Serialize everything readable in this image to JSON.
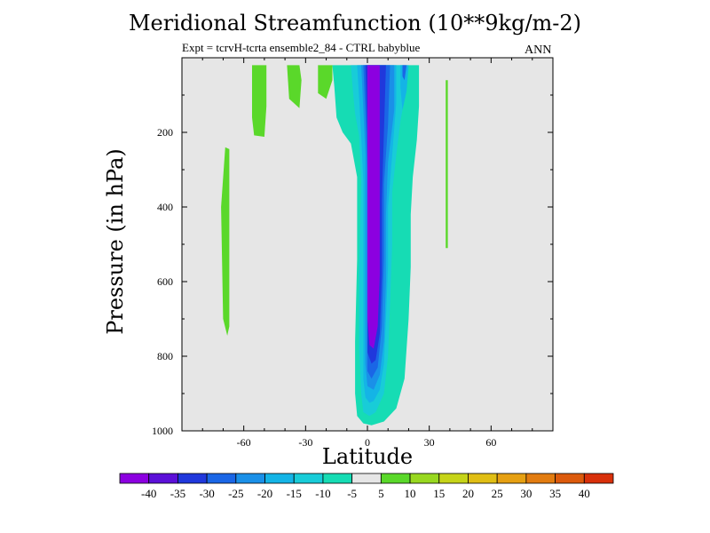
{
  "chart_data": {
    "type": "heatmap",
    "title": "Meridional Streamfunction (10**9kg/m-2)",
    "subtitle": "Expt = tcrvH-tcrta ensemble2_84 - CTRL babyblue",
    "season": "ANN",
    "xlabel": "Latitude",
    "ylabel": "Pressure (in hPa)",
    "xlim": [
      -90,
      90
    ],
    "ylim": [
      1000,
      0
    ],
    "x_ticks": [
      -60,
      -30,
      0,
      30,
      60
    ],
    "y_ticks": [
      200,
      400,
      600,
      800,
      1000
    ],
    "background_color": "#e6e6e6",
    "colorbar": {
      "labels": [
        "-40",
        "-35",
        "-30",
        "-25",
        "-20",
        "-15",
        "-10",
        "-5",
        "5",
        "10",
        "15",
        "20",
        "25",
        "30",
        "35",
        "40"
      ],
      "colors": [
        "#8c00e0",
        "#5c10d8",
        "#2038dc",
        "#1a66e6",
        "#1a90e8",
        "#14b4e6",
        "#18ccd8",
        "#16dcb4",
        "#e6e6e6",
        "#5ad82a",
        "#98d820",
        "#c6d418",
        "#e0be14",
        "#e6a012",
        "#e27c10",
        "#dc5a0c",
        "#d8300a"
      ]
    },
    "regions": [
      {
        "level": "10",
        "color": "#5ad82a",
        "label": "positive cell NH stratosphere",
        "points": [
          [
            -56,
            20
          ],
          [
            -49,
            20
          ],
          [
            -49,
            130
          ],
          [
            -50,
            212
          ],
          [
            -55,
            208
          ],
          [
            -56,
            160
          ]
        ]
      },
      {
        "level": "10",
        "color": "#5ad82a",
        "label": "positive cell SH tropics-upper",
        "points": [
          [
            -39,
            20
          ],
          [
            -33,
            20
          ],
          [
            -32,
            60
          ],
          [
            -33,
            135
          ],
          [
            -38,
            110
          ]
        ]
      },
      {
        "level": "10",
        "color": "#5ad82a",
        "label": "positive cell subtropics",
        "points": [
          [
            -24,
            20
          ],
          [
            -17,
            20
          ],
          [
            -17,
            60
          ],
          [
            -20,
            110
          ],
          [
            -24,
            95
          ]
        ]
      },
      {
        "level": "10",
        "color": "#5ad82a",
        "label": "positive cell south polar",
        "points": [
          [
            -69,
            240
          ],
          [
            -67,
            245
          ],
          [
            -67,
            720
          ],
          [
            -68,
            745
          ],
          [
            -70,
            700
          ],
          [
            -71,
            400
          ]
        ]
      },
      {
        "level": "10",
        "color": "#5ad82a",
        "label": "positive sliver",
        "points": [
          [
            38,
            60
          ],
          [
            39,
            60
          ],
          [
            39,
            510
          ],
          [
            38,
            510
          ]
        ]
      },
      {
        "level": "-10",
        "color": "#16dcb4",
        "label": "outer negative cell",
        "points": [
          [
            -17,
            20
          ],
          [
            25,
            20
          ],
          [
            25,
            130
          ],
          [
            24,
            220
          ],
          [
            22,
            320
          ],
          [
            21,
            420
          ],
          [
            21,
            560
          ],
          [
            20,
            700
          ],
          [
            18,
            860
          ],
          [
            14,
            940
          ],
          [
            8,
            975
          ],
          [
            2,
            985
          ],
          [
            -2,
            980
          ],
          [
            -5,
            960
          ],
          [
            -6,
            900
          ],
          [
            -6,
            760
          ],
          [
            -5,
            540
          ],
          [
            -5,
            320
          ],
          [
            -8,
            230
          ],
          [
            -12,
            200
          ],
          [
            -15,
            160
          ],
          [
            -16,
            80
          ]
        ]
      },
      {
        "level": "-15",
        "color": "#18ccd8",
        "label": "negative cell",
        "points": [
          [
            -8,
            20
          ],
          [
            18,
            20
          ],
          [
            18,
            110
          ],
          [
            16,
            170
          ],
          [
            14,
            260
          ],
          [
            12,
            360
          ],
          [
            12,
            500
          ],
          [
            11,
            660
          ],
          [
            10,
            800
          ],
          [
            8,
            900
          ],
          [
            4,
            950
          ],
          [
            1,
            960
          ],
          [
            -2,
            950
          ],
          [
            -3,
            900
          ],
          [
            -4,
            780
          ],
          [
            -4,
            560
          ],
          [
            -3,
            330
          ],
          [
            -4,
            210
          ],
          [
            -6,
            150
          ],
          [
            -7,
            90
          ]
        ]
      },
      {
        "level": "-20",
        "color": "#14b4e6",
        "label": "negative cell",
        "points": [
          [
            -5,
            20
          ],
          [
            14,
            20
          ],
          [
            14,
            120
          ],
          [
            12,
            260
          ],
          [
            10,
            400
          ],
          [
            10,
            560
          ],
          [
            9,
            700
          ],
          [
            8,
            820
          ],
          [
            6,
            890
          ],
          [
            3,
            920
          ],
          [
            1,
            925
          ],
          [
            -1,
            910
          ],
          [
            -2,
            860
          ],
          [
            -2,
            720
          ],
          [
            -2,
            500
          ],
          [
            -2,
            330
          ],
          [
            -3,
            210
          ],
          [
            -4,
            110
          ]
        ]
      },
      {
        "level": "-25",
        "color": "#1a90e8",
        "label": "negative cell",
        "points": [
          [
            -3,
            20
          ],
          [
            13,
            20
          ],
          [
            13,
            140
          ],
          [
            10,
            280
          ],
          [
            9,
            420
          ],
          [
            9,
            600
          ],
          [
            8,
            760
          ],
          [
            6,
            850
          ],
          [
            3,
            890
          ],
          [
            0,
            880
          ],
          [
            -1,
            820
          ],
          [
            -1,
            600
          ],
          [
            -1,
            400
          ],
          [
            -1,
            260
          ],
          [
            -2,
            140
          ]
        ]
      },
      {
        "level": "-30",
        "color": "#1a66e6",
        "label": "negative cell",
        "points": [
          [
            -2,
            20
          ],
          [
            11,
            20
          ],
          [
            10,
            180
          ],
          [
            8,
            340
          ],
          [
            8,
            540
          ],
          [
            7,
            720
          ],
          [
            5,
            830
          ],
          [
            2,
            860
          ],
          [
            0,
            840
          ],
          [
            0,
            700
          ],
          [
            0,
            480
          ],
          [
            0,
            300
          ],
          [
            -1,
            150
          ]
        ]
      },
      {
        "level": "-35",
        "color": "#2038dc",
        "label": "negative cell",
        "points": [
          [
            -1,
            20
          ],
          [
            9,
            20
          ],
          [
            8,
            200
          ],
          [
            7,
            380
          ],
          [
            7,
            580
          ],
          [
            6,
            740
          ],
          [
            4,
            810
          ],
          [
            2,
            820
          ],
          [
            0,
            790
          ],
          [
            0,
            600
          ],
          [
            0,
            400
          ],
          [
            0,
            200
          ]
        ]
      },
      {
        "level": "-40",
        "color": "#8c00e0",
        "label": "core minimum",
        "points": [
          [
            0,
            20
          ],
          [
            6,
            20
          ],
          [
            6,
            180
          ],
          [
            6,
            380
          ],
          [
            6,
            580
          ],
          [
            5,
            720
          ],
          [
            3,
            780
          ],
          [
            1,
            770
          ],
          [
            0,
            700
          ],
          [
            0,
            500
          ],
          [
            0,
            300
          ],
          [
            0,
            120
          ]
        ]
      },
      {
        "level": "-20",
        "color": "#14b4e6",
        "label": "upper NH lobe",
        "points": [
          [
            16,
            20
          ],
          [
            20,
            20
          ],
          [
            19,
            90
          ],
          [
            17,
            140
          ],
          [
            16,
            80
          ]
        ]
      },
      {
        "level": "-30",
        "color": "#1a66e6",
        "label": "upper NH lobe core",
        "points": [
          [
            17,
            20
          ],
          [
            19,
            20
          ],
          [
            18,
            60
          ],
          [
            17,
            50
          ]
        ]
      }
    ]
  }
}
